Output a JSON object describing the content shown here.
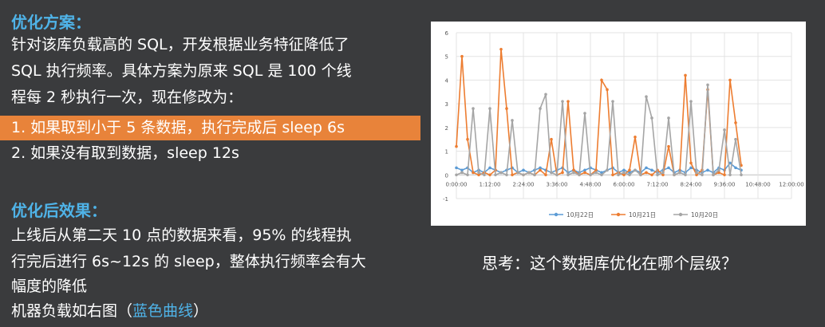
{
  "left": {
    "heading1": "优化方案：",
    "p1_lines": [
      "针对该库负载高的 SQL，开发根据业务特征降低了",
      "SQL 执行频率。具体方案为原来 SQL 是 100 个线",
      "程每 2 秒执行一次，现在修改为："
    ],
    "item1": "1.  如果取到小于 5 条数据，执行完成后 sleep 6s",
    "item2": "2.  如果没有取到数据，sleep 12s",
    "heading2": "优化后效果：",
    "p2_lines": [
      "上线后从第二天 10 点的数据来看，95% 的线程执",
      "行完后进行 6s~12s 的 sleep，整体执行频率会有大",
      "幅度的降低"
    ],
    "last_prefix": "机器负载如右图（",
    "last_blue": "蓝色曲线",
    "last_suffix": "）"
  },
  "right": {
    "question": "思考：这个数据库优化在哪个层级？"
  },
  "chart_data": {
    "type": "line",
    "x_ticks": [
      "0:00:00",
      "1:12:00",
      "2:24:00",
      "3:36:00",
      "4:48:00",
      "6:00:00",
      "7:12:00",
      "8:24:00",
      "9:36:00",
      "10:48:00",
      "12:00:00"
    ],
    "y_ticks": [
      "6",
      "5",
      "4",
      "3",
      "2",
      "1",
      "0",
      "-1"
    ],
    "ylim": [
      -1,
      6
    ],
    "xlim_hours": [
      0,
      12
    ],
    "grid": true,
    "legend_position": "bottom",
    "series": [
      {
        "name": "10月22日",
        "color": "#5b9bd5",
        "x": [
          0,
          0.2,
          0.4,
          0.6,
          0.8,
          1.0,
          1.2,
          1.4,
          1.6,
          1.8,
          2.0,
          2.2,
          2.4,
          2.6,
          2.8,
          3.0,
          3.2,
          3.4,
          3.6,
          3.8,
          4.0,
          4.2,
          4.4,
          4.6,
          4.8,
          5.0,
          5.2,
          5.4,
          5.6,
          5.8,
          6.0,
          6.2,
          6.4,
          6.6,
          6.8,
          7.0,
          7.2,
          7.4,
          7.6,
          7.8,
          8.0,
          8.2,
          8.4,
          8.6,
          8.8,
          9.0,
          9.2,
          9.4,
          9.6,
          9.8,
          10.0,
          10.2
        ],
        "values": [
          0.3,
          0.2,
          0.3,
          0.1,
          0.2,
          0.1,
          0.3,
          0.2,
          0.1,
          0.2,
          0.3,
          0.1,
          0.2,
          0.1,
          0.2,
          0.3,
          0.2,
          0.1,
          0.2,
          0.3,
          0.1,
          0.2,
          0.1,
          0.2,
          0.3,
          0.2,
          0.1,
          0.2,
          0.3,
          0.1,
          0.2,
          0.1,
          0.2,
          0.1,
          0.3,
          0.2,
          0.1,
          0.2,
          0.3,
          0.1,
          0.2,
          0.1,
          0.3,
          0.2,
          0.1,
          0.2,
          0.1,
          0.3,
          0.2,
          0.5,
          0.3,
          0.2
        ]
      },
      {
        "name": "10月21日",
        "color": "#ed7d31",
        "x": [
          0,
          0.2,
          0.4,
          0.6,
          0.8,
          1.0,
          1.2,
          1.4,
          1.6,
          1.8,
          2.0,
          2.2,
          2.4,
          2.6,
          2.8,
          3.0,
          3.2,
          3.4,
          3.6,
          3.8,
          4.0,
          4.2,
          4.4,
          4.6,
          4.8,
          5.0,
          5.2,
          5.4,
          5.6,
          5.8,
          6.0,
          6.2,
          6.4,
          6.6,
          6.8,
          7.0,
          7.2,
          7.4,
          7.6,
          7.8,
          8.0,
          8.2,
          8.4,
          8.6,
          8.8,
          9.0,
          9.2,
          9.4,
          9.6,
          9.8,
          10.0,
          10.2
        ],
        "values": [
          1.2,
          5.0,
          1.5,
          0.1,
          0.0,
          0.1,
          0.0,
          0.2,
          5.3,
          2.8,
          0.0,
          0.1,
          0.0,
          0.1,
          0.0,
          0.2,
          0.0,
          1.5,
          0.0,
          0.1,
          3.1,
          0.2,
          0.0,
          0.1,
          0.0,
          0.2,
          4.0,
          3.6,
          0.0,
          0.1,
          0.0,
          0.2,
          1.6,
          0.0,
          0.1,
          0.0,
          0.2,
          0.0,
          1.2,
          0.0,
          0.1,
          4.2,
          0.5,
          0.0,
          0.2,
          3.6,
          0.0,
          0.1,
          0.0,
          4.0,
          2.2,
          0.4
        ]
      },
      {
        "name": "10月20日",
        "color": "#a5a5a5",
        "x": [
          0,
          0.2,
          0.4,
          0.6,
          0.8,
          1.0,
          1.2,
          1.4,
          1.6,
          1.8,
          2.0,
          2.2,
          2.4,
          2.6,
          2.8,
          3.0,
          3.2,
          3.4,
          3.6,
          3.8,
          4.0,
          4.2,
          4.4,
          4.6,
          4.8,
          5.0,
          5.2,
          5.4,
          5.6,
          5.8,
          6.0,
          6.2,
          6.4,
          6.6,
          6.8,
          7.0,
          7.2,
          7.4,
          7.6,
          7.8,
          8.0,
          8.2,
          8.4,
          8.6,
          8.8,
          9.0,
          9.2,
          9.4,
          9.6,
          9.8,
          10.0,
          10.2
        ],
        "values": [
          0.0,
          0.1,
          0.0,
          2.8,
          0.1,
          0.0,
          2.8,
          0.0,
          0.1,
          0.0,
          2.3,
          0.1,
          0.0,
          0.1,
          0.0,
          2.8,
          3.4,
          0.1,
          0.0,
          3.1,
          0.0,
          0.1,
          0.0,
          2.6,
          0.0,
          0.1,
          0.0,
          0.2,
          3.1,
          0.0,
          0.1,
          0.0,
          0.2,
          0.0,
          3.3,
          2.4,
          0.0,
          0.1,
          2.4,
          0.0,
          0.1,
          0.0,
          3.1,
          0.1,
          0.0,
          3.8,
          0.0,
          0.2,
          1.9,
          0.0,
          1.5,
          0.0
        ]
      }
    ]
  }
}
